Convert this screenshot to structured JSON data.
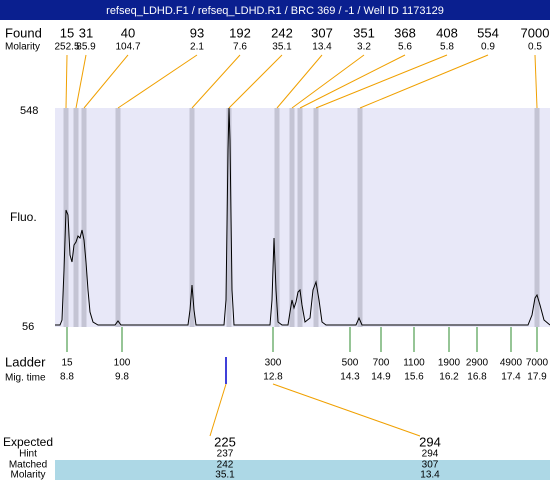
{
  "header": {
    "title": "refseq_LDHD.F1 / refseq_LDHD.R1 / BRC 369 / -1 / Well ID 1173129"
  },
  "found": {
    "label": "Found",
    "values": [
      15,
      31,
      40,
      93,
      192,
      242,
      307,
      351,
      368,
      408,
      554,
      7000
    ]
  },
  "molarity": {
    "label": "Molarity",
    "values": [
      252.5,
      85.9,
      104.7,
      2.1,
      7.6,
      35.1,
      13.4,
      3.2,
      5.6,
      5.8,
      0.9,
      0.5
    ]
  },
  "plot": {
    "y_label": "Fluo.",
    "y_max": 548,
    "y_min": 56
  },
  "ladder": {
    "label": "Ladder",
    "values": [
      15,
      100,
      300,
      500,
      700,
      1100,
      1900,
      2900,
      4900,
      7000
    ]
  },
  "mig_time": {
    "label": "Mig. time",
    "values": [
      8.8,
      9.8,
      12.8,
      14.3,
      14.9,
      15.6,
      16.2,
      16.8,
      17.4,
      17.9
    ]
  },
  "expected": {
    "rows": [
      {
        "label": "Expected",
        "values": [
          225,
          294
        ]
      },
      {
        "label": "Hint",
        "values": [
          237,
          294
        ]
      },
      {
        "label": "Matched",
        "values": [
          242,
          307
        ]
      },
      {
        "label": "Molarity",
        "values": [
          35.1,
          13.4
        ]
      }
    ]
  }
}
